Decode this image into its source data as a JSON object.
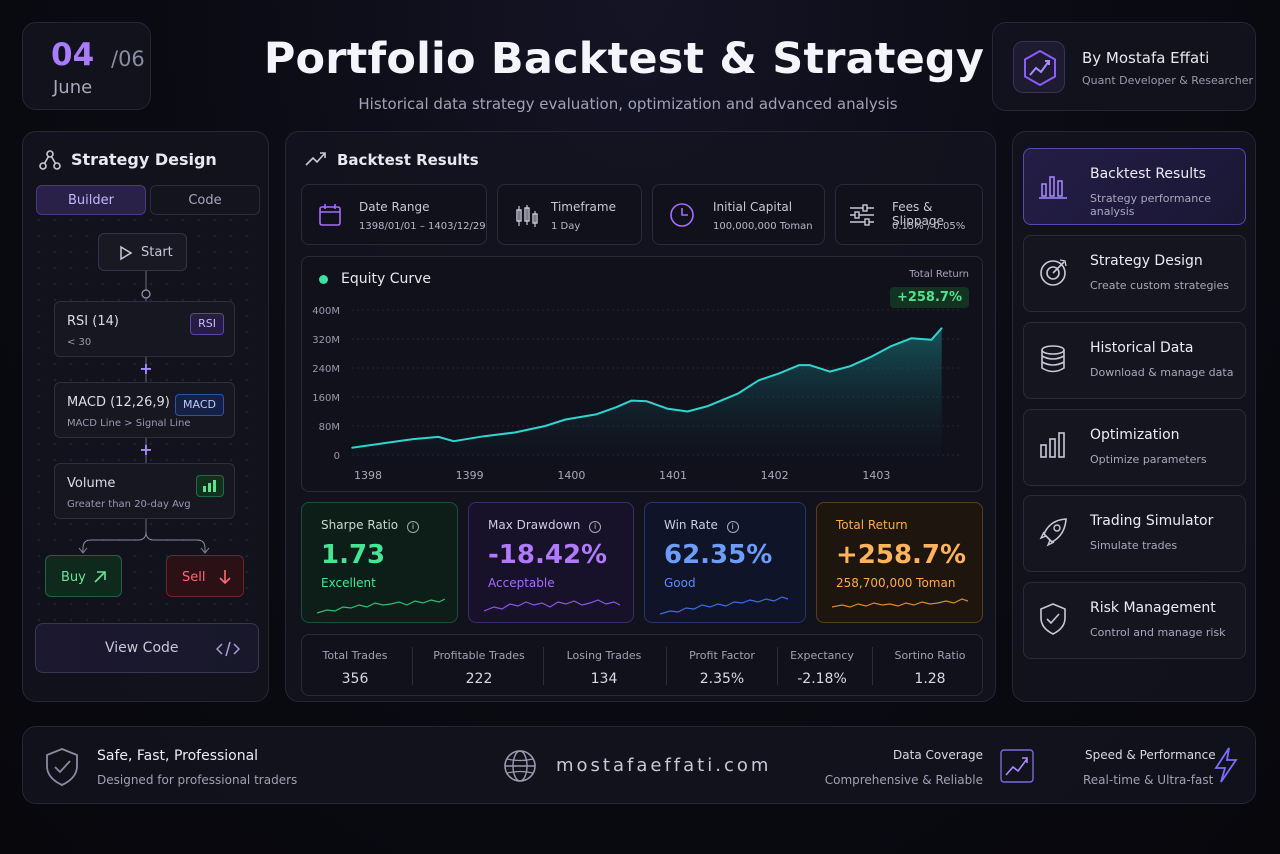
{
  "date": {
    "day": "04",
    "month_num": "/06",
    "month_name": "June"
  },
  "header": {
    "title": "Portfolio Backtest & Strategy",
    "subtitle": "Historical data strategy evaluation, optimization and advanced analysis"
  },
  "author": {
    "name": "By Mostafa Effati",
    "role": "Quant Developer & Researcher"
  },
  "strategy_design": {
    "title": "Strategy Design",
    "tabs": [
      "Builder",
      "Code"
    ],
    "start_label": "Start",
    "nodes": [
      {
        "title": "RSI (14)",
        "sub": "< 30",
        "badge": "RSI"
      },
      {
        "title": "MACD (12,26,9)",
        "sub": "MACD Line > Signal Line",
        "badge": "MACD"
      },
      {
        "title": "Volume",
        "sub": "Greater than 20-day Avg",
        "badge": ""
      }
    ],
    "buy_label": "Buy",
    "sell_label": "Sell",
    "view_code_label": "View Code"
  },
  "backtest": {
    "title": "Backtest Results",
    "info": [
      {
        "label": "Date Range",
        "value": "1398/01/01 – 1403/12/29",
        "icon": "calendar-icon"
      },
      {
        "label": "Timeframe",
        "value": "1 Day",
        "icon": "candlestick-icon"
      },
      {
        "label": "Initial Capital",
        "value": "100,000,000 Toman",
        "icon": "clock-icon"
      },
      {
        "label": "Fees & Slippage",
        "value": "0.15% / 0.05%",
        "icon": "sliders-icon"
      }
    ],
    "equity": {
      "title": "Equity Curve",
      "total_return_label": "Total Return",
      "total_return_value": "+258.7%"
    },
    "metrics": [
      {
        "label": "Sharpe Ratio",
        "value": "1.73",
        "sub": "Excellent",
        "color": "#3ee08f"
      },
      {
        "label": "Max Drawdown",
        "value": "-18.42%",
        "sub": "Acceptable",
        "color": "#a56cff"
      },
      {
        "label": "Win Rate",
        "value": "62.35%",
        "sub": "Good",
        "color": "#5b8cff"
      },
      {
        "label": "Total Return",
        "value": "+258.7%",
        "sub": "258,700,000 Toman",
        "color": "#ffaa4a"
      }
    ],
    "stats": [
      {
        "label": "Total Trades",
        "value": "356"
      },
      {
        "label": "Profitable Trades",
        "value": "222"
      },
      {
        "label": "Losing Trades",
        "value": "134"
      },
      {
        "label": "Profit Factor",
        "value": "2.35%"
      },
      {
        "label": "Expectancy",
        "value": "-2.18%"
      },
      {
        "label": "Sortino Ratio",
        "value": "1.28"
      }
    ]
  },
  "chart_data": {
    "type": "area",
    "title": "Equity Curve",
    "xlabel": "",
    "ylabel": "",
    "x_ticks": [
      "1398",
      "1399",
      "1400",
      "1401",
      "1402",
      "1403"
    ],
    "y_ticks": [
      "0",
      "80M",
      "160M",
      "240M",
      "320M",
      "400M"
    ],
    "ylim": [
      0,
      400
    ],
    "xlim": [
      1398,
      1404
    ],
    "series": [
      {
        "x": [
          1398.0,
          1398.3,
          1398.6,
          1398.85,
          1399.0,
          1399.3,
          1399.6,
          1399.9,
          1400.1,
          1400.4,
          1400.6,
          1400.75,
          1400.9,
          1401.1,
          1401.3,
          1401.5,
          1401.8,
          1402.0,
          1402.2,
          1402.4,
          1402.5,
          1402.7,
          1402.9,
          1403.1,
          1403.3,
          1403.5,
          1403.7,
          1403.8
        ],
        "values": [
          20,
          32,
          44,
          50,
          38,
          52,
          62,
          80,
          98,
          112,
          132,
          150,
          148,
          128,
          120,
          135,
          170,
          206,
          225,
          248,
          248,
          230,
          245,
          270,
          300,
          322,
          318,
          350
        ]
      }
    ]
  },
  "nav": [
    {
      "title": "Backtest Results",
      "sub": "Strategy performance analysis",
      "active": true
    },
    {
      "title": "Strategy Design",
      "sub": "Create custom strategies",
      "active": false
    },
    {
      "title": "Historical Data",
      "sub": "Download & manage data",
      "active": false
    },
    {
      "title": "Optimization",
      "sub": "Optimize parameters",
      "active": false
    },
    {
      "title": "Trading Simulator",
      "sub": "Simulate trades",
      "active": false
    },
    {
      "title": "Risk Management",
      "sub": "Control and manage risk",
      "active": false
    }
  ],
  "footer": {
    "title": "Safe, Fast, Professional",
    "sub": "Designed for professional traders",
    "site": "mostafaeffati.com",
    "coverage_title": "Data Coverage",
    "coverage_sub": "Comprehensive & Reliable",
    "speed_title": "Speed & Performance",
    "speed_sub": "Real-time & Ultra-fast"
  }
}
